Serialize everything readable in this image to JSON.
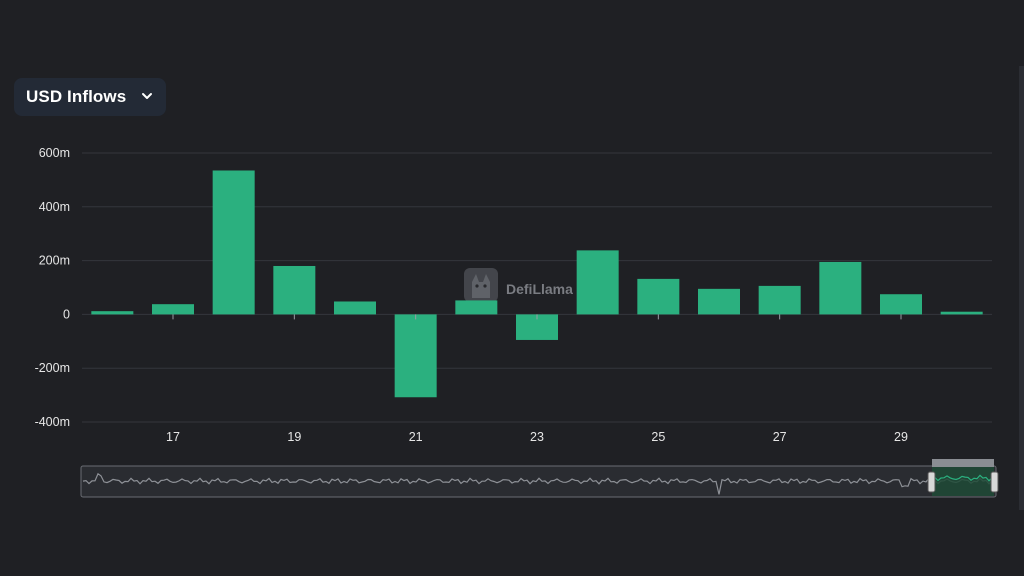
{
  "dropdown": {
    "label": "USD Inflows",
    "icon": "chevron-down-icon"
  },
  "watermark": {
    "text": "DefiLlama",
    "icon": "llama-logo-icon"
  },
  "colors": {
    "background": "#1f2024",
    "bar": "#2bb07f",
    "grid": "#34363c",
    "text": "#e6e6e6"
  },
  "chart_data": {
    "type": "bar",
    "categories": [
      "16",
      "17",
      "18",
      "19",
      "20",
      "21",
      "22",
      "23",
      "24",
      "25",
      "26",
      "27",
      "28",
      "29",
      "30"
    ],
    "values": [
      12,
      38,
      535,
      180,
      48,
      -308,
      52,
      -95,
      238,
      132,
      95,
      106,
      195,
      75,
      10
    ],
    "y_ticks": [
      {
        "value": 600,
        "label": "600m"
      },
      {
        "value": 400,
        "label": "400m"
      },
      {
        "value": 200,
        "label": "200m"
      },
      {
        "value": 0,
        "label": "0"
      },
      {
        "value": -200,
        "label": "-200m"
      },
      {
        "value": -400,
        "label": "-400m"
      }
    ],
    "x_ticks": [
      "17",
      "19",
      "21",
      "23",
      "25",
      "27",
      "29"
    ],
    "ylim": [
      -400,
      600
    ],
    "grid": true,
    "title": "",
    "xlabel": "",
    "ylabel": "",
    "range_selector": true
  }
}
